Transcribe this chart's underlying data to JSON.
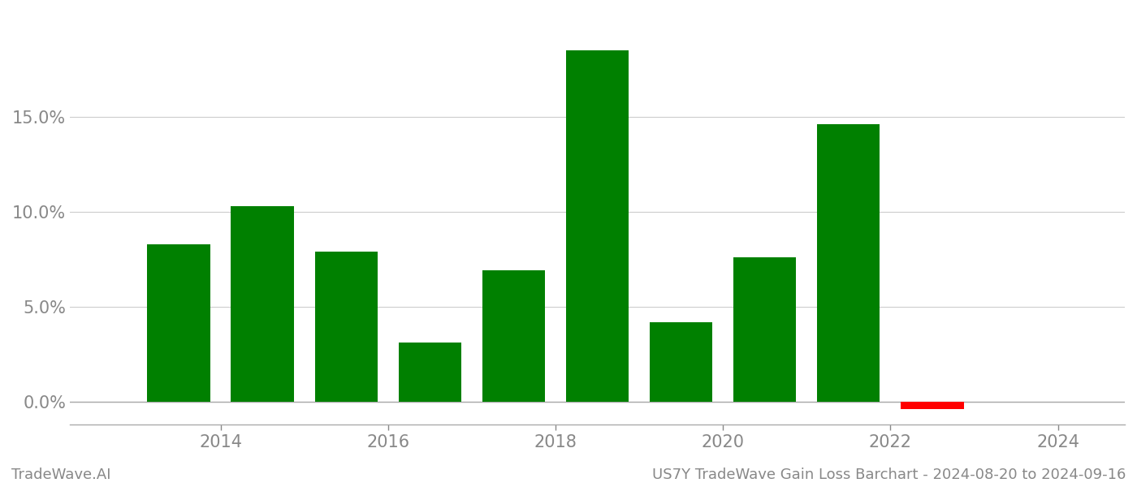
{
  "years": [
    2013,
    2014,
    2015,
    2016,
    2017,
    2018,
    2019,
    2020,
    2021,
    2022,
    2023
  ],
  "values": [
    0.083,
    0.103,
    0.079,
    0.031,
    0.069,
    0.185,
    0.042,
    0.076,
    0.146,
    -0.004,
    0.0
  ],
  "bar_colors": [
    "#008000",
    "#008000",
    "#008000",
    "#008000",
    "#008000",
    "#008000",
    "#008000",
    "#008000",
    "#008000",
    "#ff0000",
    "#008000"
  ],
  "background_color": "#ffffff",
  "footer_left": "TradeWave.AI",
  "footer_right": "US7Y TradeWave Gain Loss Barchart - 2024-08-20 to 2024-09-16",
  "ylim_min": -0.012,
  "ylim_max": 0.205,
  "yticks": [
    0.0,
    0.05,
    0.1,
    0.15
  ],
  "xtick_positions": [
    2014,
    2016,
    2018,
    2020,
    2022,
    2024
  ],
  "xtick_labels": [
    "2014",
    "2016",
    "2018",
    "2020",
    "2022",
    "2024"
  ],
  "xlim_min": 2012.2,
  "xlim_max": 2024.8,
  "grid_color": "#cccccc",
  "axis_color": "#aaaaaa",
  "tick_label_color": "#888888",
  "footer_fontsize": 13,
  "tick_fontsize": 15,
  "bar_width": 0.75
}
